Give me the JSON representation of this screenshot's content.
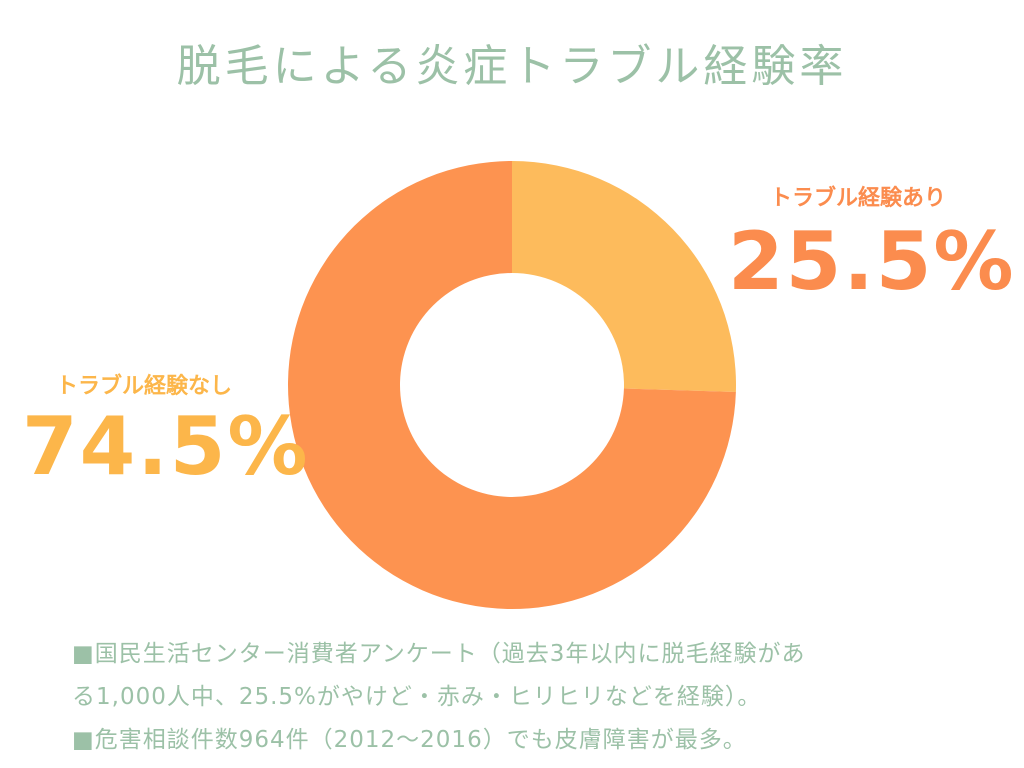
{
  "title": "脱毛による炎症トラブル経験率",
  "chart_data": {
    "type": "pie",
    "title": "脱毛による炎症トラブル経験率",
    "series": [
      {
        "name": "トラブル経験あり",
        "value": 25.5,
        "label": "25.5%",
        "color": "#fdbb5c"
      },
      {
        "name": "トラブル経験なし",
        "value": 74.5,
        "label": "74.5%",
        "color": "#fd9350"
      }
    ],
    "donut": true,
    "legend": "none"
  },
  "notes": [
    "■国民生活センター消費者アンケート（過去3年以内に脱毛経験がある1,000人中、25.5%がやけど・赤み・ヒリヒリなどを経験）。",
    "■危害相談件数964件（2012～2016）でも皮膚障害が最多。"
  ],
  "note_lines": [
    "■国民生活センター消費者アンケート（過去3年以内に脱毛経験があ",
    "る1,000人中、25.5%がやけど・赤み・ヒリヒリなどを経験）。",
    "■危害相談件数964件（2012～2016）でも皮膚障害が最多。"
  ]
}
